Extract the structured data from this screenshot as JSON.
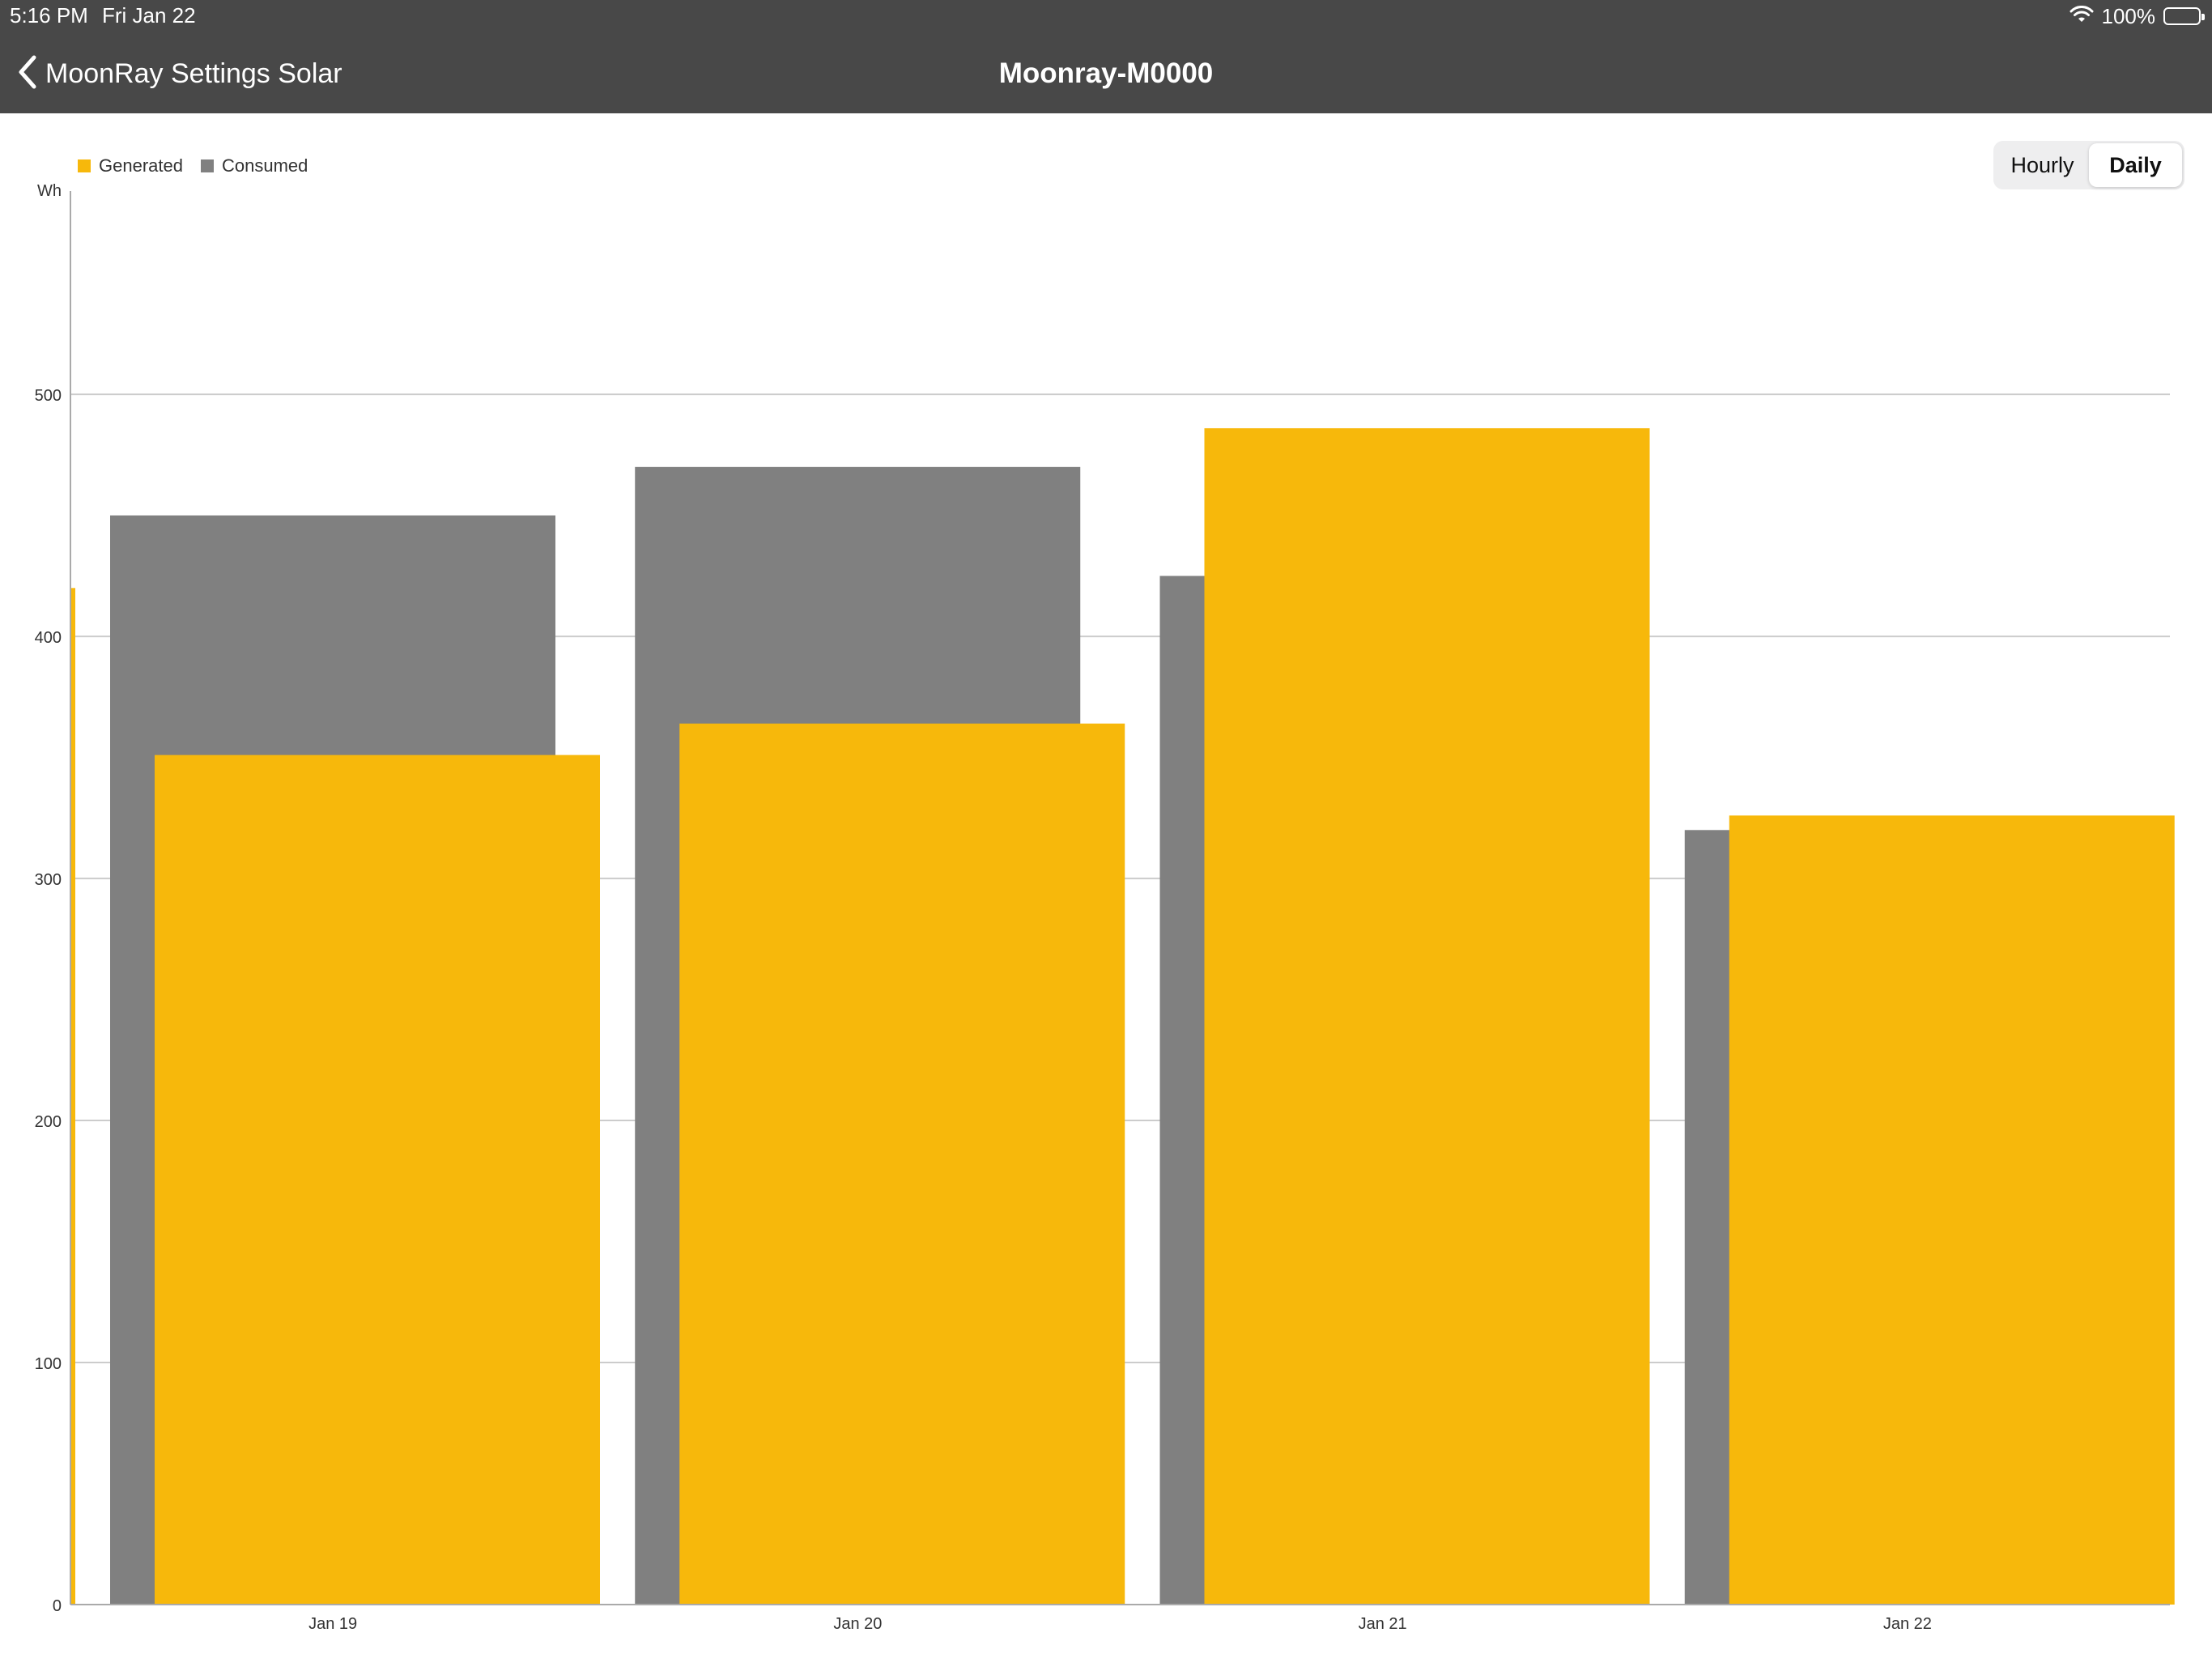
{
  "status_bar": {
    "time": "5:16 PM",
    "date": "Fri Jan 22",
    "battery": "100%",
    "icons": [
      "wifi-icon",
      "battery-icon"
    ]
  },
  "nav": {
    "back_label": "MoonRay Settings Solar",
    "title": "Moonray-M0000"
  },
  "toggle": {
    "options": [
      "Hourly",
      "Daily"
    ],
    "selected": "Daily"
  },
  "legend": {
    "generated": "Generated",
    "consumed": "Consumed"
  },
  "colors": {
    "header": "#484848",
    "generated": "#F7B80B",
    "consumed": "#808080",
    "grid": "#cccccc"
  },
  "chart_data": {
    "type": "bar",
    "ylabel": "Wh",
    "ylim": [
      0,
      584
    ],
    "yticks": [
      0,
      100,
      200,
      300,
      400,
      500
    ],
    "categories": [
      "Jan 19",
      "Jan 20",
      "Jan 21",
      "Jan 22"
    ],
    "series": [
      {
        "name": "Consumed",
        "values": [
          450,
          470,
          425,
          320
        ]
      },
      {
        "name": "Generated",
        "values": [
          351,
          364,
          486,
          326
        ]
      }
    ],
    "partial_generated_before_first": 420,
    "grid": true,
    "legend_position": "top-left"
  }
}
